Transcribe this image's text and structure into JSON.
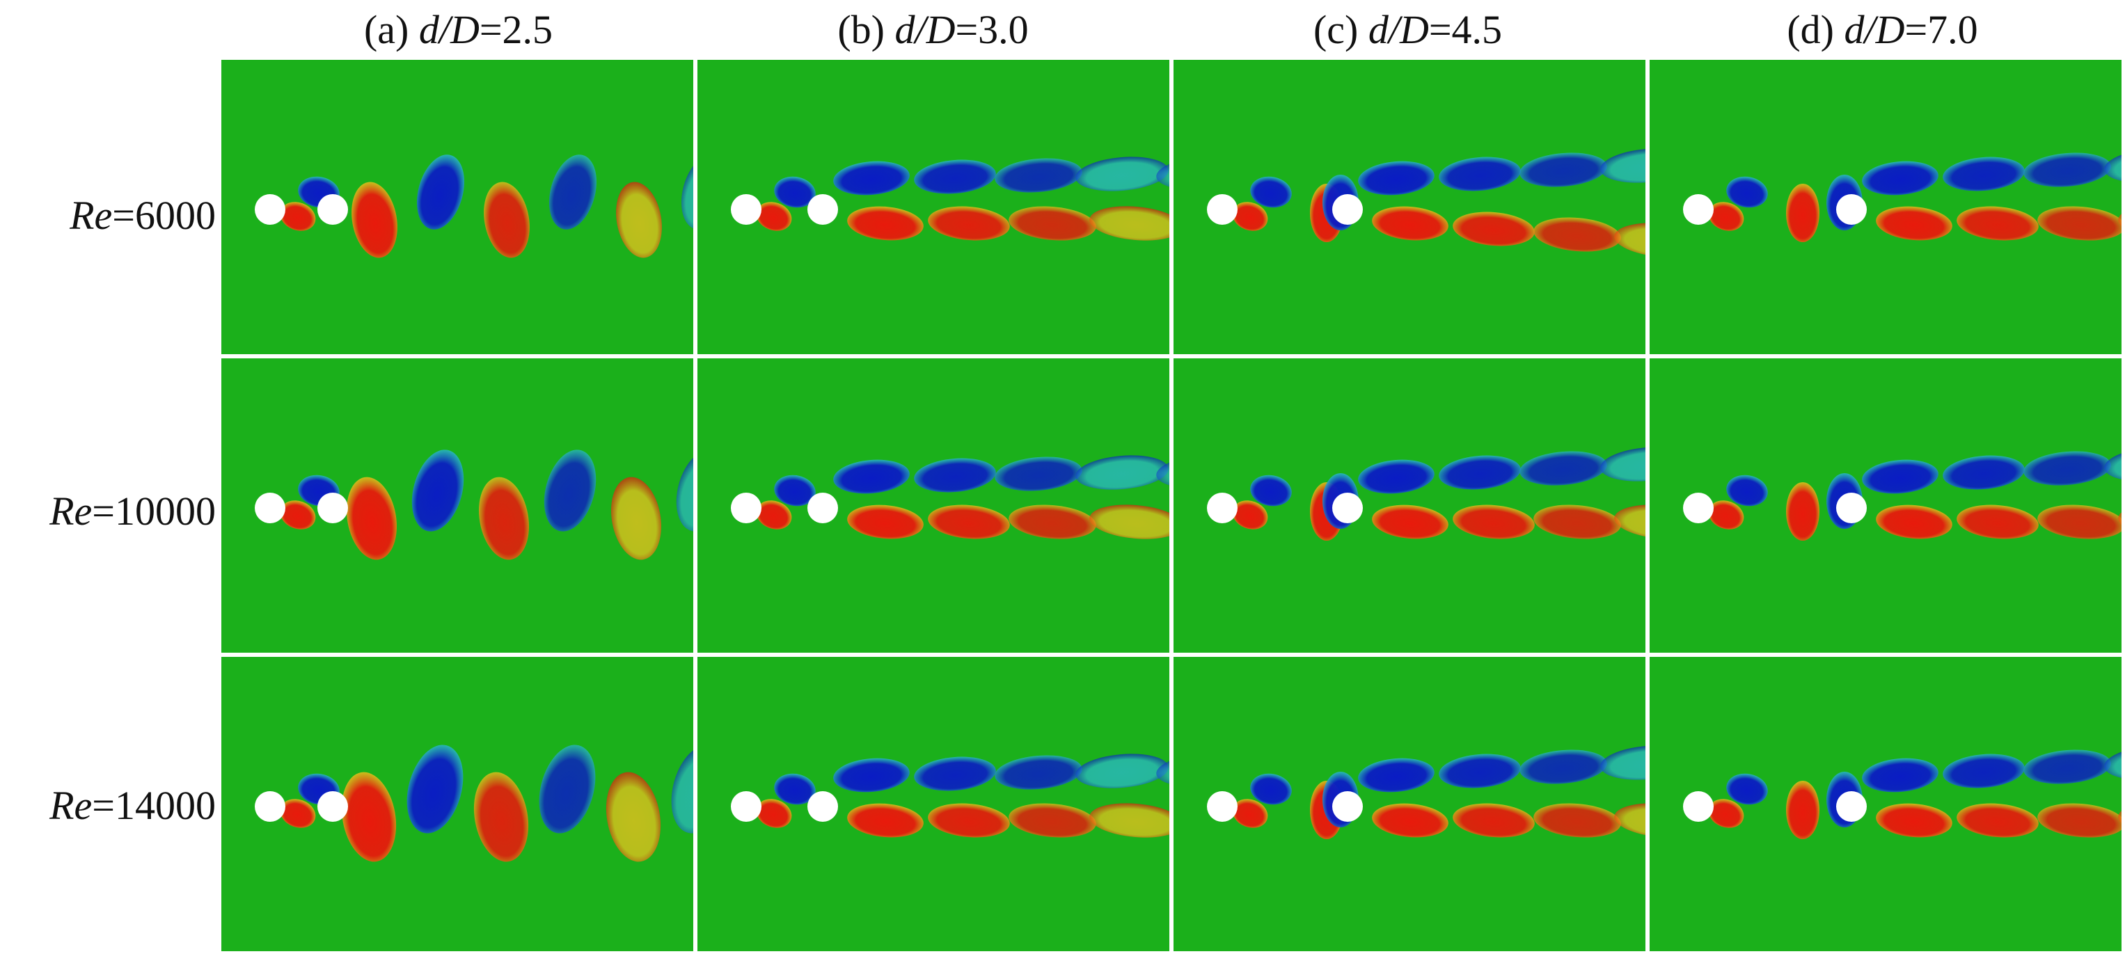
{
  "columns": [
    {
      "prefix": "(a) ",
      "var": "d/D",
      "value": "=2.5"
    },
    {
      "prefix": "(b) ",
      "var": "d/D",
      "value": "=3.0"
    },
    {
      "prefix": "(c) ",
      "var": "d/D",
      "value": "=4.5"
    },
    {
      "prefix": "(d) ",
      "var": "d/D",
      "value": "=7.0"
    }
  ],
  "rows": [
    {
      "var": "Re",
      "value": "=6000"
    },
    {
      "var": "Re",
      "value": "=10000"
    },
    {
      "var": "Re",
      "value": "=14000"
    }
  ],
  "colors": {
    "background": "#1bb01b",
    "positive_vorticity": "#e81a0c",
    "negative_vorticity": "#0a1cc4",
    "weak_positive": "#e6c21c",
    "weak_negative": "#2ab9c8",
    "cylinder": "#ffffff",
    "divider": "#ffffff"
  }
}
